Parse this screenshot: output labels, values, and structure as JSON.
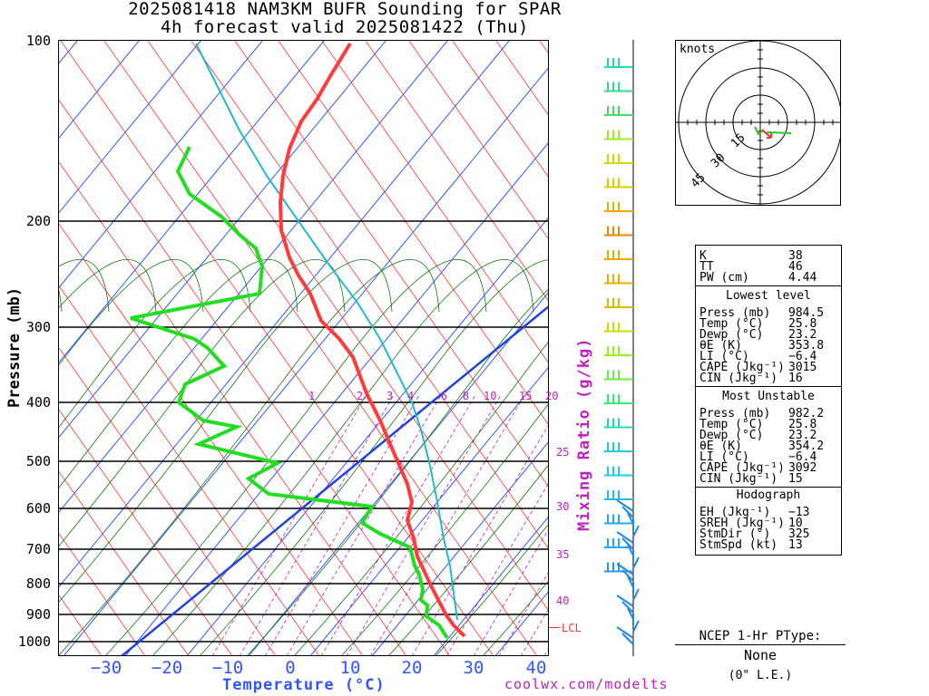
{
  "title_line1": "2025081418 NAM3KM BUFR Sounding for SPAR",
  "title_line2": "4h forecast valid 2025081422 (Thu)",
  "y_axis_label": "Pressure (mb)",
  "x_axis_label": "Temperature (°C)",
  "pressure_ticks": [
    "100",
    "200",
    "300",
    "400",
    "500",
    "600",
    "700",
    "800",
    "900",
    "1000"
  ],
  "temp_ticks": [
    "−30",
    "−20",
    "−10",
    "0",
    "10",
    "20",
    "30",
    "40"
  ],
  "mixing_ratio_title": "Mixing Ratio (g/kg)",
  "mixing_labels": [
    "1",
    "2",
    "3",
    "4",
    "6",
    "8",
    "10",
    "15",
    "20"
  ],
  "mixing_side_labels": [
    "25",
    "30",
    "35",
    "40"
  ],
  "lcl_label": "LCL",
  "credit": "coolwx.com/modelts",
  "hodograph": {
    "units_label": "knots",
    "ring_labels": [
      "15",
      "30",
      "45"
    ]
  },
  "indices": [
    {
      "label": "K",
      "value": "38"
    },
    {
      "label": "TT",
      "value": "46"
    },
    {
      "label": "PW (cm)",
      "value": "4.44"
    }
  ],
  "lowest_level": {
    "heading": "Lowest level",
    "rows": [
      {
        "label": "Press (mb)",
        "value": "984.5"
      },
      {
        "label": "Temp (°C)",
        "value": "25.8"
      },
      {
        "label": "Dewp (°C)",
        "value": "23.2"
      },
      {
        "label": "θE (K)",
        "value": "353.8"
      },
      {
        "label": "LI (°C)",
        "value": "−6.4"
      },
      {
        "label": "CAPE (Jkg⁻¹)",
        "value": "3015"
      },
      {
        "label": "CIN (Jkg⁻¹)",
        "value": "16"
      }
    ]
  },
  "most_unstable": {
    "heading": "Most Unstable",
    "rows": [
      {
        "label": "Press (mb)",
        "value": "982.2"
      },
      {
        "label": "Temp (°C)",
        "value": "25.8"
      },
      {
        "label": "Dewp (°C)",
        "value": "23.2"
      },
      {
        "label": "θE (K)",
        "value": "354.2"
      },
      {
        "label": "LI (°C)",
        "value": "−6.4"
      },
      {
        "label": "CAPE (Jkg⁻¹)",
        "value": "3092"
      },
      {
        "label": "CIN (Jkg⁻¹)",
        "value": "15"
      }
    ]
  },
  "hodograph_stats": {
    "heading": "Hodograph",
    "rows": [
      {
        "label": "EH (Jkg⁻¹)",
        "value": "−13"
      },
      {
        "label": "SREH (Jkg⁻¹)",
        "value": "10"
      },
      {
        "label": "StmDir (°)",
        "value": "325"
      },
      {
        "label": "StmSpd (kt)",
        "value": "13"
      }
    ]
  },
  "ptype": {
    "heading": "NCEP 1-Hr PType:",
    "value": "None",
    "amount": "(0\" L.E.)"
  },
  "colors": {
    "temperature": "#ff3b3b",
    "dewpoint": "#22dd22",
    "parcel": "#22bbcc",
    "isotherm": "#3355ff",
    "dry_adiabat": "#ff3333",
    "moist_adiabat": "#117711",
    "mixing_ratio": "#c020c0"
  }
}
